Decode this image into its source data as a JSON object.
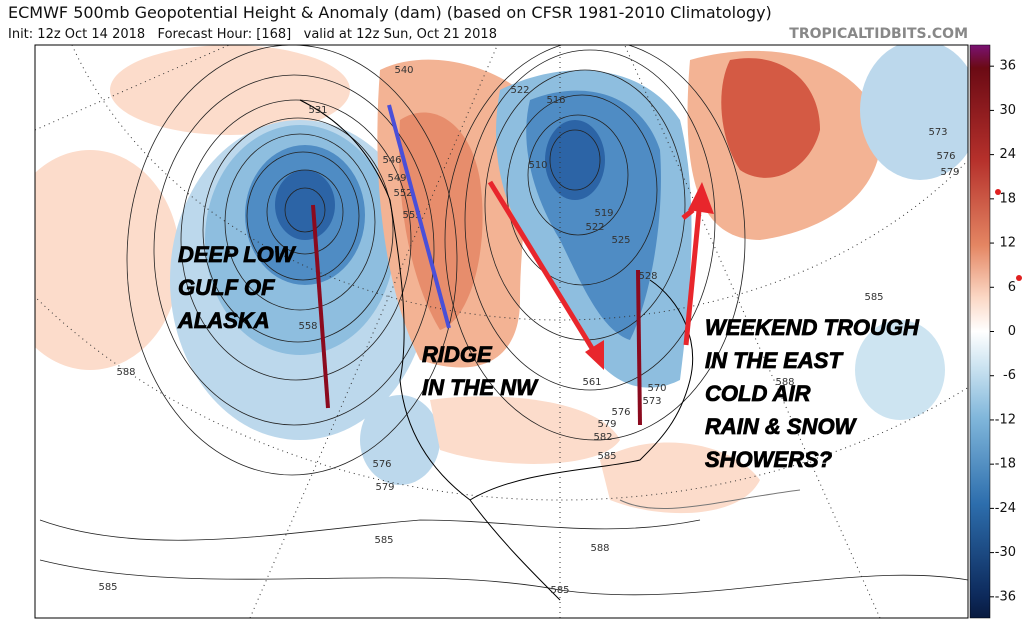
{
  "header": {
    "title": "ECMWF 500mb Geopotential Height & Anomaly (dam) (based on CFSR 1981-2010 Climatology)",
    "subtitle": "Init: 12z Oct 14 2018   Forecast Hour: [168]   valid at 12z Sun, Oct 21 2018",
    "site": "TROPICALTIDBITS.COM"
  },
  "colorbar": {
    "ticks": [
      36,
      30,
      24,
      18,
      12,
      6,
      0,
      -6,
      -12,
      -18,
      -24,
      -30,
      -36
    ]
  },
  "annotations": [
    {
      "lines": [
        "DEEP LOW",
        "GULF OF",
        "ALASKA"
      ]
    },
    {
      "lines": [
        "RIDGE",
        "IN THE NW"
      ]
    },
    {
      "lines": [
        "WEEKEND TROUGH",
        "IN THE EAST",
        "COLD AIR",
        "RAIN & SNOW",
        "SHOWERS?"
      ]
    }
  ],
  "contour_labels": [
    "531",
    "540",
    "522",
    "516",
    "546",
    "549",
    "552",
    "555",
    "573",
    "576",
    "579",
    "585",
    "588",
    "588",
    "558",
    "576",
    "579",
    "585",
    "585",
    "585",
    "588",
    "561",
    "570",
    "573",
    "576",
    "579",
    "582",
    "585",
    "510",
    "519",
    "522",
    "525",
    "528"
  ]
}
